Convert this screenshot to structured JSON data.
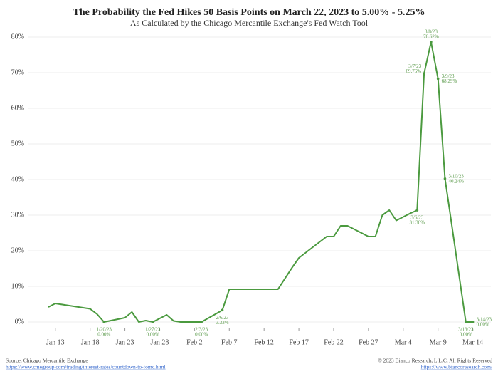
{
  "chart_data": {
    "type": "line",
    "title": "The Probability the Fed Hikes 50 Basis Points on March 22, 2023 to 5.00% - 5.25%",
    "subtitle": "As Calculated by the Chicago Mercantile Exchange's Fed Watch Tool",
    "x": [
      "Jan 12",
      "Jan 13",
      "Jan 14",
      "Jan 15",
      "Jan 16",
      "Jan 17",
      "Jan 18",
      "Jan 19",
      "Jan 20",
      "Jan 21",
      "Jan 22",
      "Jan 23",
      "Jan 24",
      "Jan 25",
      "Jan 26",
      "Jan 27",
      "Jan 28",
      "Jan 29",
      "Jan 30",
      "Jan 31",
      "Feb 1",
      "Feb 2",
      "Feb 3",
      "Feb 4",
      "Feb 5",
      "Feb 6",
      "Feb 7",
      "Feb 8",
      "Feb 9",
      "Feb 10",
      "Feb 11",
      "Feb 12",
      "Feb 13",
      "Feb 14",
      "Feb 15",
      "Feb 16",
      "Feb 17",
      "Feb 18",
      "Feb 19",
      "Feb 20",
      "Feb 21",
      "Feb 22",
      "Feb 23",
      "Feb 24",
      "Feb 25",
      "Feb 26",
      "Feb 27",
      "Feb 28",
      "Mar 1",
      "Mar 2",
      "Mar 3",
      "Mar 4",
      "Mar 5",
      "Mar 6",
      "Mar 7",
      "Mar 8",
      "Mar 9",
      "Mar 10",
      "Mar 11",
      "Mar 12",
      "Mar 13",
      "Mar 14"
    ],
    "series": [
      {
        "color": "#4b9a3f",
        "values": [
          4.2,
          5.2,
          4.9,
          4.6,
          4.3,
          4.0,
          3.7,
          2.2,
          0,
          0.4,
          0.8,
          1.2,
          2.8,
          0,
          0.4,
          0,
          1.0,
          2.0,
          0.3,
          0,
          0,
          0,
          0,
          1.1,
          2.2,
          3.33,
          9.2,
          9.2,
          9.2,
          9.2,
          9.2,
          9.2,
          9.2,
          9.2,
          12.2,
          15.2,
          18.0,
          19.5,
          21,
          22.5,
          24,
          24,
          27,
          27,
          26,
          25,
          24,
          24,
          30,
          31.4,
          28.5,
          29.5,
          30.5,
          31.38,
          69.76,
          78.62,
          68.29,
          40.24,
          27,
          13.5,
          0,
          0
        ]
      }
    ],
    "xticks": [
      "Jan 13",
      "Jan 18",
      "Jan 23",
      "Jan 28",
      "Feb 2",
      "Feb 7",
      "Feb 12",
      "Feb 17",
      "Feb 22",
      "Feb 27",
      "Mar 4",
      "Mar 9",
      "Mar 14"
    ],
    "ylim": [
      -3,
      82
    ],
    "yticks": [
      {
        "value": 0,
        "label": "0%"
      },
      {
        "value": 10,
        "label": "10%"
      },
      {
        "value": 20,
        "label": "20%"
      },
      {
        "value": 30,
        "label": "30%"
      },
      {
        "value": 40,
        "label": "40%"
      },
      {
        "value": 50,
        "label": "50%"
      },
      {
        "value": 60,
        "label": "60%"
      },
      {
        "value": 70,
        "label": "70%"
      },
      {
        "value": 80,
        "label": "80%"
      }
    ],
    "grid": true,
    "annotations": [
      {
        "x": "Jan 20",
        "date": "1/20/23",
        "label": "0.00%",
        "position": "below"
      },
      {
        "x": "Jan 27",
        "date": "1/27/23",
        "label": "0.00%",
        "position": "below"
      },
      {
        "x": "Feb 3",
        "date": "2/3/23",
        "label": "0.00%",
        "position": "below"
      },
      {
        "x": "Feb 6",
        "date": "2/6/23",
        "label": "3.33%",
        "position": "below"
      },
      {
        "x": "Mar 6",
        "date": "3/6/23",
        "label": "31.38%",
        "position": "below"
      },
      {
        "x": "Mar 7",
        "date": "3/7/23",
        "label": "69.76%",
        "position": "left"
      },
      {
        "x": "Mar 8",
        "date": "3/8/23",
        "label": "78.62%",
        "position": "above"
      },
      {
        "x": "Mar 9",
        "date": "3/9/23",
        "label": "68.29%",
        "position": "right"
      },
      {
        "x": "Mar 10",
        "date": "3/10/23",
        "label": "40.24%",
        "position": "right"
      },
      {
        "x": "Mar 13",
        "date": "3/13/23",
        "label": "0.00%",
        "position": "below"
      },
      {
        "x": "Mar 14",
        "date": "3/14/23",
        "label": "0.00%",
        "position": "right"
      }
    ],
    "source": "Source: Chicago Mercantile Exchange",
    "source_url": "https://www.cmegroup.com/trading/interest-rates/countdown-to-fomc.html",
    "copyright": "© 2023 Bianco Research, L.L.C. All Rights Reserved",
    "copyright_url": "https://www.biancoresearch.com/"
  }
}
